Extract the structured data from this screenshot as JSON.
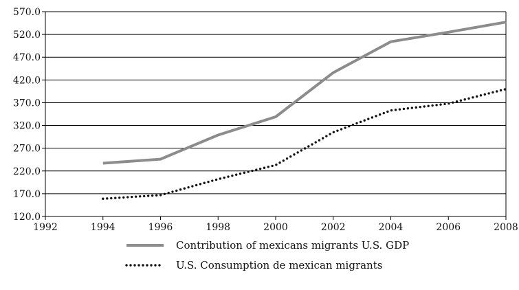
{
  "chart_data": {
    "type": "line",
    "x": [
      1994,
      1996,
      1998,
      2000,
      2002,
      2004,
      2006,
      2008
    ],
    "xlim": [
      1992,
      2008
    ],
    "x_ticks": [
      "1992",
      "1994",
      "1996",
      "1998",
      "2000",
      "2002",
      "2004",
      "2006",
      "2008"
    ],
    "ylim": [
      120.0,
      570.0
    ],
    "y_ticks": [
      "120.0",
      "170.0",
      "220.0",
      "270.0",
      "320.0",
      "370.0",
      "420.0",
      "470.0",
      "520.0",
      "570.0"
    ],
    "grid": "horizontal",
    "legend": "bottom",
    "series": [
      {
        "name": "Contribution of mexicans migrants U.S. GDP",
        "values": [
          237,
          246,
          299,
          339,
          436,
          504,
          525,
          547
        ],
        "color": "#8c8c8c",
        "style": "solid"
      },
      {
        "name": "U.S. Consumption de mexican migrants",
        "values": [
          159,
          167,
          202,
          233,
          305,
          353,
          368,
          400
        ],
        "color": "#111111",
        "style": "dotted"
      }
    ]
  }
}
